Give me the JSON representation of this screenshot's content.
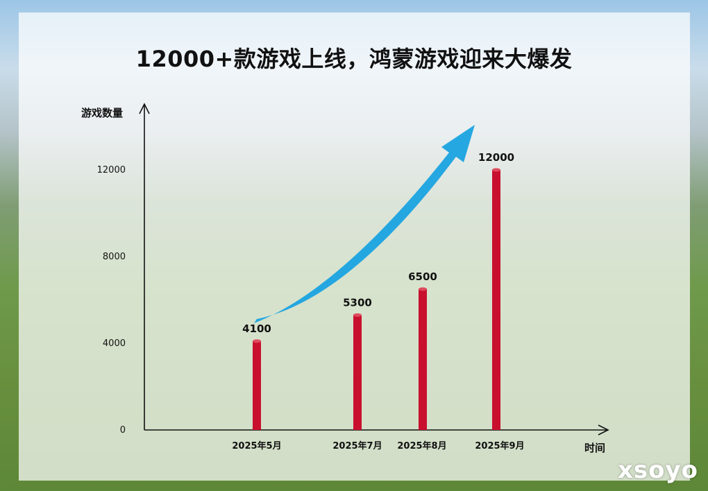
{
  "title": "12000+款游戏上线，鸿蒙游戏迎来大爆发",
  "watermark": "xsoyo",
  "colors": {
    "bar": "#c8102e",
    "arrow": "#1aa3e0",
    "axis": "#111111"
  },
  "chart_data": {
    "type": "bar",
    "categories": [
      "2025年5月",
      "2025年7月",
      "2025年8月",
      "2025年9月"
    ],
    "values": [
      4100,
      5300,
      6500,
      12000
    ],
    "data_labels": [
      "4100",
      "5300",
      "6500",
      "12000"
    ],
    "yticks": [
      0,
      4000,
      8000,
      12000
    ],
    "ylim": [
      0,
      15000
    ],
    "ylabel": "游戏数量",
    "xlabel": "时间",
    "grid": false,
    "legend": "none",
    "annotation": "trend-arrow-up"
  }
}
